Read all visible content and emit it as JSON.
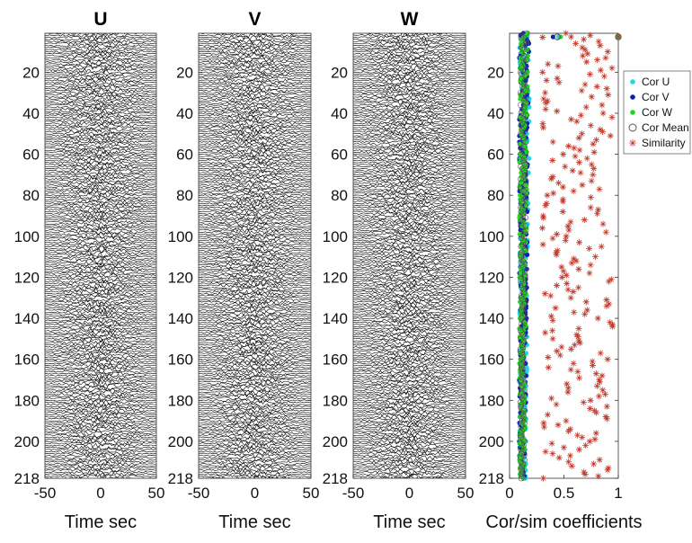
{
  "chart_data": [
    {
      "type": "line",
      "title": "U",
      "xlabel": "Time sec",
      "ylabel": "",
      "xlim": [
        -50,
        50
      ],
      "ylim": [
        218,
        1
      ],
      "y_reversed": true,
      "x_ticks": [
        "-50",
        "0",
        "50"
      ],
      "y_ticks": [
        "20",
        "40",
        "60",
        "80",
        "100",
        "120",
        "140",
        "160",
        "180",
        "200",
        "218"
      ],
      "traces": 218,
      "series_color": "#000000"
    },
    {
      "type": "line",
      "title": "V",
      "xlabel": "Time sec",
      "ylabel": "",
      "xlim": [
        -50,
        50
      ],
      "ylim": [
        218,
        1
      ],
      "y_reversed": true,
      "x_ticks": [
        "-50",
        "0",
        "50"
      ],
      "y_ticks": [
        "20",
        "40",
        "60",
        "80",
        "100",
        "120",
        "140",
        "160",
        "180",
        "200",
        "218"
      ],
      "traces": 218,
      "series_color": "#000000"
    },
    {
      "type": "line",
      "title": "W",
      "xlabel": "Time sec",
      "ylabel": "",
      "xlim": [
        -50,
        50
      ],
      "ylim": [
        218,
        1
      ],
      "y_reversed": true,
      "x_ticks": [
        "-50",
        "0",
        "50"
      ],
      "y_ticks": [
        "20",
        "40",
        "60",
        "80",
        "100",
        "120",
        "140",
        "160",
        "180",
        "200",
        "218"
      ],
      "traces": 218,
      "series_color": "#000000"
    },
    {
      "type": "scatter",
      "title": "",
      "xlabel": "Cor/sim coefficients",
      "ylabel": "",
      "xlim": [
        0,
        1
      ],
      "ylim": [
        218,
        1
      ],
      "y_reversed": true,
      "x_ticks": [
        "0",
        "0.5",
        "1"
      ],
      "y_ticks": [
        "20",
        "40",
        "60",
        "80",
        "100",
        "120",
        "140",
        "160",
        "180",
        "200",
        "218"
      ],
      "legend": {
        "position": "right",
        "entries": [
          "Cor U",
          "Cor V",
          "Cor W",
          "Cor Mean",
          "Similarity"
        ]
      },
      "series": [
        {
          "name": "Cor U",
          "color": "#22d3ee",
          "marker": "dot",
          "approx_range": [
            0.09,
            0.19
          ]
        },
        {
          "name": "Cor V",
          "color": "#0b1fb8",
          "marker": "dot",
          "approx_range": [
            0.09,
            0.18
          ]
        },
        {
          "name": "Cor W",
          "color": "#22d822",
          "marker": "dot",
          "approx_range": [
            0.09,
            0.17
          ]
        },
        {
          "name": "Cor Mean",
          "color": "#555555",
          "marker": "circle",
          "approx_range": [
            0.1,
            0.16
          ]
        },
        {
          "name": "Similarity",
          "color": "#c0392b",
          "marker": "star",
          "approx_range": [
            0.3,
            0.95
          ]
        }
      ],
      "reference_points": [
        {
          "y": 1,
          "cor_u": 0.45,
          "cor_v": 0.4,
          "cor_w": 0.47,
          "cor_mean": 0.44,
          "similarity": 0.5
        },
        {
          "y": 1,
          "cor_u": 1.0,
          "cor_v": 1.0,
          "cor_w": 1.0,
          "cor_mean": 1.0,
          "similarity": 1.0
        }
      ]
    }
  ]
}
